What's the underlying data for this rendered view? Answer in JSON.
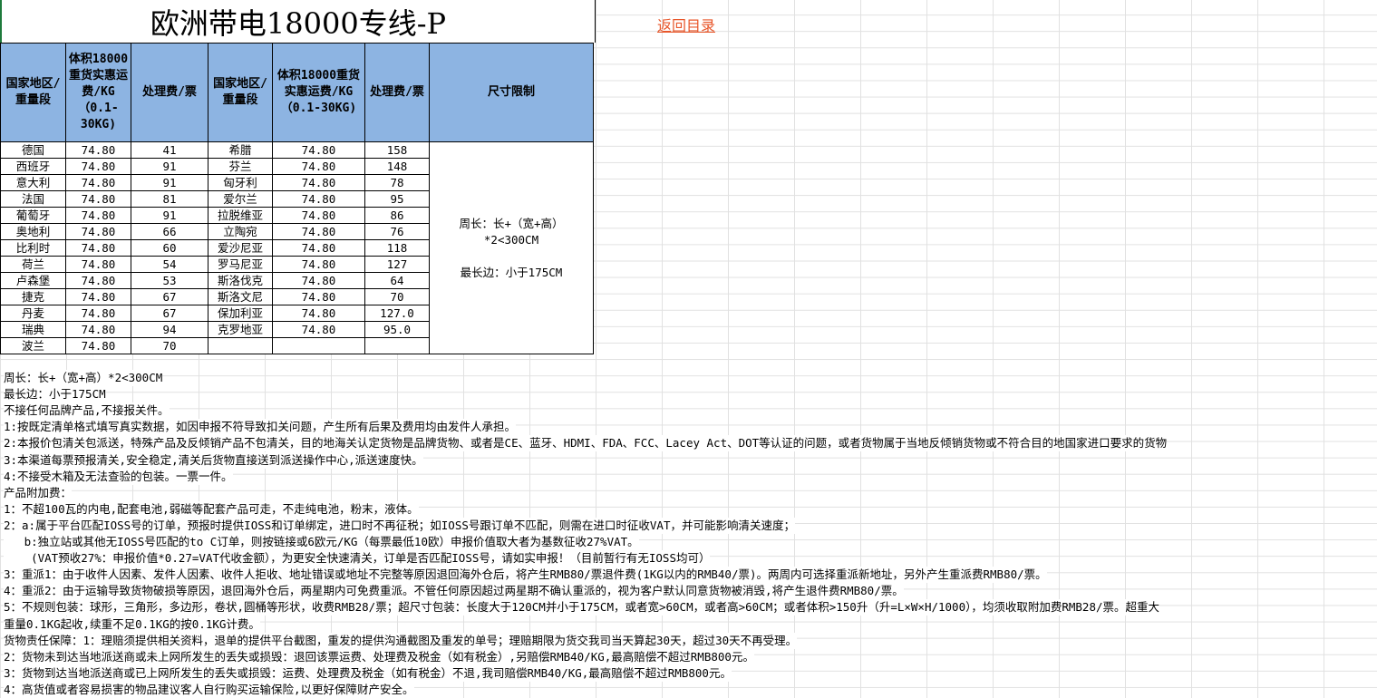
{
  "title": "欧洲带电18000专线-P",
  "back_link": "返回目录",
  "table": {
    "headers": [
      "国家地区/重量段",
      "体积18000重货实惠运费/KG（0.1-30KG)",
      "处理费/票",
      "国家地区/重量段",
      "体积18000重货实惠运费/KG（0.1-30KG)",
      "处理费/票",
      "尺寸限制"
    ],
    "rows": [
      [
        "德国",
        "74.80",
        "41",
        "希腊",
        "74.80",
        "158"
      ],
      [
        "西班牙",
        "74.80",
        "91",
        "芬兰",
        "74.80",
        "148"
      ],
      [
        "意大利",
        "74.80",
        "91",
        "匈牙利",
        "74.80",
        "78"
      ],
      [
        "法国",
        "74.80",
        "81",
        "爱尔兰",
        "74.80",
        "95"
      ],
      [
        "葡萄牙",
        "74.80",
        "91",
        "拉脱维亚",
        "74.80",
        "86"
      ],
      [
        "奥地利",
        "74.80",
        "66",
        "立陶宛",
        "74.80",
        "76"
      ],
      [
        "比利时",
        "74.80",
        "60",
        "爱沙尼亚",
        "74.80",
        "118"
      ],
      [
        "荷兰",
        "74.80",
        "54",
        "罗马尼亚",
        "74.80",
        "127"
      ],
      [
        "卢森堡",
        "74.80",
        "53",
        "斯洛伐克",
        "74.80",
        "64"
      ],
      [
        "捷克",
        "74.80",
        "67",
        "斯洛文尼",
        "74.80",
        "70"
      ],
      [
        "丹麦",
        "74.80",
        "67",
        "保加利亚",
        "74.80",
        "127.0"
      ],
      [
        "瑞典",
        "74.80",
        "94",
        "克罗地亚",
        "74.80",
        "95.0"
      ],
      [
        "波兰",
        "74.80",
        "70",
        "",
        "",
        ""
      ]
    ],
    "size_limit": [
      "周长：长+（宽+高）*2<300CM",
      "最长边：小于175CM"
    ]
  },
  "notes": [
    "周长：长+（宽+高）*2<300CM",
    "最长边：小于175CM",
    "不接任何品牌产品,不接报关件。",
    "1:按既定清单格式填写真实数据，如因申报不符导致扣关问题，产生所有后果及费用均由发件人承担。",
    "2:本报价包清关包派送，特殊产品及反倾销产品不包清关，目的地海关认定货物是品牌货物、或者是CE、蓝牙、HDMI、FDA、FCC、Lacey Act、DOT等认证的问题，或者货物属于当地反倾销货物或不符合目的地国家进口要求的货物",
    "3:本渠道每票预报清关,安全稳定,清关后货物直接送到派送操作中心,派送速度快。",
    "4:不接受木箱及无法查验的包装。一票一件。",
    "产品附加费：",
    "1：不超100瓦的内电,配套电池,弱磁等配套产品可走，不走纯电池，粉末，液体。",
    "2：a:属于平台匹配IOSS号的订单，预报时提供IOSS和订单绑定，进口时不再征税；如IOSS号跟订单不匹配，则需在进口时征收VAT，并可能影响清关速度；",
    "   b:独立站或其他无IOSS号匹配的to C订单，则按链接或6欧元/KG（每票最低10欧）申报价值取大者为基数征收27%VAT。",
    "    (VAT预收27%：申报价值*0.27=VAT代收金额），为更安全快速清关，订单是否匹配IOSS号，请如实申报！（目前暂行有无IOSS均可）",
    "3：重派1：由于收件人因素、发件人因素、收件人拒收、地址错误或地址不完整等原因退回海外仓后，将产生RMB80/票退件费(1KG以内的RMB40/票)。两周内可选择重派新地址，另外产生重派费RMB80/票。",
    "4：重派2：由于运输导致货物破损等原因，退回海外仓后，两星期内可免费重派。不管任何原因超过两星期不确认重派的，视为客户默认同意货物被消毁,将产生退件费RMB80/票。",
    "5：不规则包装：球形，三角形，多边形，卷状,圆桶等形状，收费RMB28/票；超尺寸包装：长度大于120CM并小于175CM，或者宽>60CM，或者高>60CM；或者体积>150升（升=L×W×H/1000），均须收取附加费RMB28/票。超重大",
    "重量0.1KG起收,续重不足0.1KG的按0.1KG计费。",
    "货物责任保障：1：理赔须提供相关资料，退单的提供平台截图，重发的提供沟通截图及重发的单号；理赔期限为货交我司当天算起30天，超过30天不再受理。",
    "2：货物未到达当地派送商或未上网所发生的丢失或损毁：退回该票运费、处理费及税金（如有税金）,另赔偿RMB40/KG,最高赔偿不超过RMB800元。",
    "3：货物到达当地派送商或已上网所发生的丢失或损毁：运费、处理费及税金（如有税金）不退,我司赔偿RMB40/KG,最高赔偿不超过RMB800元。",
    "4：高货值或者容易损害的物品建议客人自行购买运输保险,以更好保障财产安全。"
  ],
  "colors": {
    "header_bg": "#8db4e2",
    "link": "#e8562a"
  }
}
